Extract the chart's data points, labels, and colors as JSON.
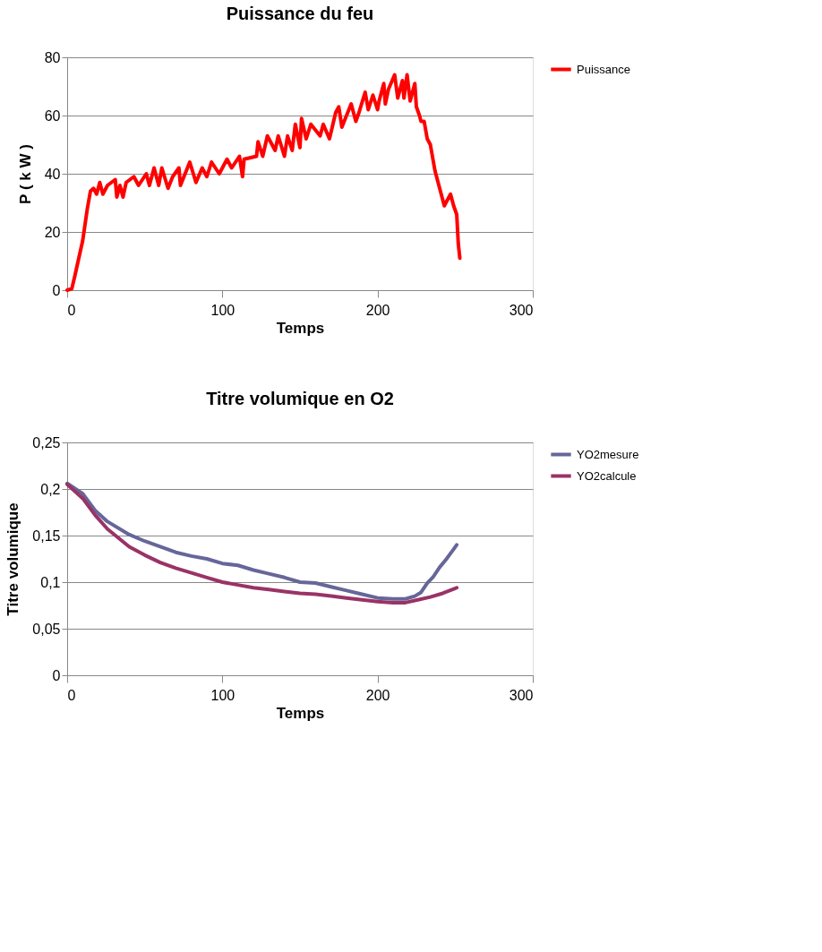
{
  "chart_data": [
    {
      "type": "line",
      "title": "Puissance du feu",
      "xlabel": "Temps",
      "ylabel": "P ( k W )",
      "xlim": [
        0,
        300
      ],
      "xticks": [
        0,
        100,
        200,
        300
      ],
      "ylim": [
        0,
        80
      ],
      "yticks": [
        0,
        20,
        40,
        60,
        80
      ],
      "grid": "y",
      "legend": "right",
      "series": [
        {
          "name": "Puissance",
          "color": "#ff0000",
          "x": [
            0,
            3,
            5,
            10,
            13,
            15,
            17,
            19,
            21,
            23,
            26,
            31,
            32,
            34,
            36,
            38,
            43,
            46,
            51,
            53,
            56,
            59,
            61,
            65,
            68,
            72,
            73,
            79,
            83,
            87,
            90,
            93,
            98,
            103,
            106,
            111,
            113,
            114,
            122,
            123,
            126,
            129,
            134,
            136,
            140,
            142,
            145,
            147,
            150,
            151,
            154,
            157,
            163,
            165,
            169,
            173,
            175,
            177,
            183,
            186,
            188,
            192,
            194,
            197,
            200,
            201,
            204,
            205,
            207,
            211,
            213,
            216,
            217,
            219,
            221,
            224,
            225,
            227,
            228,
            230,
            232,
            234,
            237,
            240,
            243,
            247,
            249,
            251,
            252,
            253
          ],
          "values": [
            0,
            0.5,
            5,
            17,
            28,
            34,
            35,
            33,
            37,
            33,
            36,
            38,
            32,
            36,
            32,
            37,
            39,
            36,
            40,
            36,
            42,
            36,
            42,
            35,
            39,
            42,
            36,
            44,
            37,
            42,
            39,
            44,
            40,
            45,
            42,
            46,
            39,
            45,
            46,
            51,
            46,
            53,
            48,
            53,
            46,
            53,
            48,
            57,
            49,
            59,
            52,
            57,
            53,
            57,
            52,
            61,
            63,
            56,
            64,
            58,
            61,
            68,
            62,
            67,
            62,
            65,
            71,
            64,
            69,
            74,
            66,
            72,
            66,
            74,
            65,
            71,
            63,
            60,
            58,
            58,
            52,
            50,
            41,
            35,
            29,
            33,
            29,
            26,
            16,
            11
          ]
        }
      ]
    },
    {
      "type": "line",
      "title": "Titre volumique en O2",
      "xlabel": "Temps",
      "ylabel": "Titre volumique",
      "xlim": [
        0,
        300
      ],
      "xticks": [
        0,
        100,
        200,
        300
      ],
      "ylim": [
        0,
        0.25
      ],
      "yticks": [
        0,
        {
          "value": 0.05,
          "label": "0,05"
        },
        {
          "value": 0.1,
          "label": "0,1"
        },
        {
          "value": 0.15,
          "label": "0,15"
        },
        {
          "value": 0.2,
          "label": "0,2"
        },
        {
          "value": 0.25,
          "label": "0,25"
        }
      ],
      "grid": "y",
      "legend": "right",
      "series": [
        {
          "name": "YO2mesure",
          "color": "#666699",
          "x": [
            0,
            10,
            18,
            26,
            40,
            50,
            60,
            70,
            80,
            90,
            100,
            110,
            120,
            130,
            140,
            150,
            160,
            170,
            180,
            190,
            200,
            210,
            218,
            224,
            228,
            232,
            236,
            240,
            244,
            248,
            251
          ],
          "values": [
            0.206,
            0.195,
            0.177,
            0.165,
            0.151,
            0.144,
            0.138,
            0.132,
            0.128,
            0.125,
            0.12,
            0.118,
            0.113,
            0.109,
            0.105,
            0.1,
            0.099,
            0.095,
            0.091,
            0.087,
            0.083,
            0.082,
            0.082,
            0.085,
            0.089,
            0.099,
            0.106,
            0.116,
            0.124,
            0.133,
            0.14
          ]
        },
        {
          "name": "YO2calcule",
          "color": "#993366",
          "x": [
            0,
            10,
            18,
            26,
            40,
            50,
            60,
            70,
            80,
            90,
            100,
            110,
            120,
            130,
            140,
            150,
            160,
            170,
            180,
            190,
            200,
            210,
            218,
            226,
            234,
            242,
            251
          ],
          "values": [
            0.205,
            0.19,
            0.172,
            0.157,
            0.138,
            0.129,
            0.121,
            0.115,
            0.11,
            0.105,
            0.1,
            0.097,
            0.094,
            0.092,
            0.09,
            0.088,
            0.087,
            0.085,
            0.083,
            0.081,
            0.079,
            0.078,
            0.078,
            0.081,
            0.084,
            0.088,
            0.094
          ]
        }
      ]
    }
  ]
}
